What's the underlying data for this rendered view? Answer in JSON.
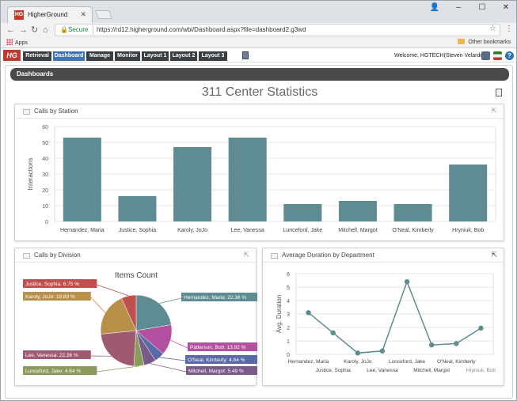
{
  "browser": {
    "tab_title": "HigherGround",
    "favicon": "HG",
    "secure_label": "Secure",
    "url": "https://rd12.higherground.com/wbi/Dashboard.aspx?file=dashboard2.g3wd",
    "apps_label": "Apps",
    "other_bookmarks": "Other bookmarks"
  },
  "app": {
    "logo": "HG",
    "menu": [
      "Retrieval",
      "Dashboard",
      "Manage",
      "Monitor",
      "Layout 1",
      "Layout 2",
      "Layout 3"
    ],
    "active_menu": "Dashboard",
    "welcome": "Welcome, HGTECH(Steven Velarde)"
  },
  "dashboard": {
    "header": "Dashboards",
    "title": "311 Center Statistics"
  },
  "panels": {
    "station": {
      "title": "Calls by Station"
    },
    "division": {
      "title": "Calls by Division"
    },
    "duration": {
      "title": "Average Duration by Department"
    }
  },
  "colors": {
    "bar": "#5f8b92",
    "line": "#5f8b92",
    "accent": "#3f74b7",
    "logo": "#c0392b"
  },
  "chart_data": [
    {
      "type": "bar",
      "categories": [
        "Hernandez, Maria",
        "Justice, Sophia",
        "Karoly, JoJo",
        "Lee, Vanessa",
        "Lunceford, Jake",
        "Mitchell, Margot",
        "O'Neal, Kimberly",
        "Hryniuk, Bob"
      ],
      "values": [
        53,
        16,
        47,
        53,
        11,
        13,
        11,
        36
      ],
      "ylabel": "Interactions",
      "ylim": [
        0,
        60
      ],
      "yticks": [
        "0",
        "10",
        "20",
        "30",
        "40",
        "50",
        "60"
      ],
      "grid": true
    },
    {
      "type": "pie",
      "title": "Items Count",
      "slices": [
        {
          "label": "Hernandez, Maria: 22.36 %",
          "value": 22.36,
          "color": "#5f8b92"
        },
        {
          "label": "Patterson, Bob: 13.92 %",
          "value": 13.92,
          "color": "#b3509f"
        },
        {
          "label": "O'Neal, Kimberly: 4.64 %",
          "value": 4.64,
          "color": "#5a6aa6"
        },
        {
          "label": "Mitchell, Margot: 5.49 %",
          "value": 5.49,
          "color": "#7a5a8a"
        },
        {
          "label": "Lunceford, Jake: 4.64 %",
          "value": 4.64,
          "color": "#8a9a5a"
        },
        {
          "label": "Lee, Vanessa: 22.36 %",
          "value": 22.36,
          "color": "#a05a70"
        },
        {
          "label": "Karoly, JoJo: 19.83 %",
          "value": 19.83,
          "color": "#b8904a"
        },
        {
          "label": "Justice, Sophia: 6.75 %",
          "value": 6.75,
          "color": "#c0504d"
        }
      ]
    },
    {
      "type": "line",
      "categories": [
        "Hernandez, Maria",
        "Justice, Sophia",
        "Karoly, JoJo",
        "Lee, Vanessa",
        "Lunceford, Jake",
        "Mitchell, Margot",
        "O'Neal, Kimberly",
        "Hryniuk, Bob"
      ],
      "values": [
        3.1,
        1.6,
        0.1,
        0.25,
        5.4,
        0.7,
        0.8,
        1.95
      ],
      "ylabel": "Avg. Duration",
      "ylim": [
        0,
        6
      ],
      "yticks": [
        "0",
        "1",
        "2",
        "3",
        "4",
        "5",
        "6"
      ],
      "grid": true
    }
  ]
}
